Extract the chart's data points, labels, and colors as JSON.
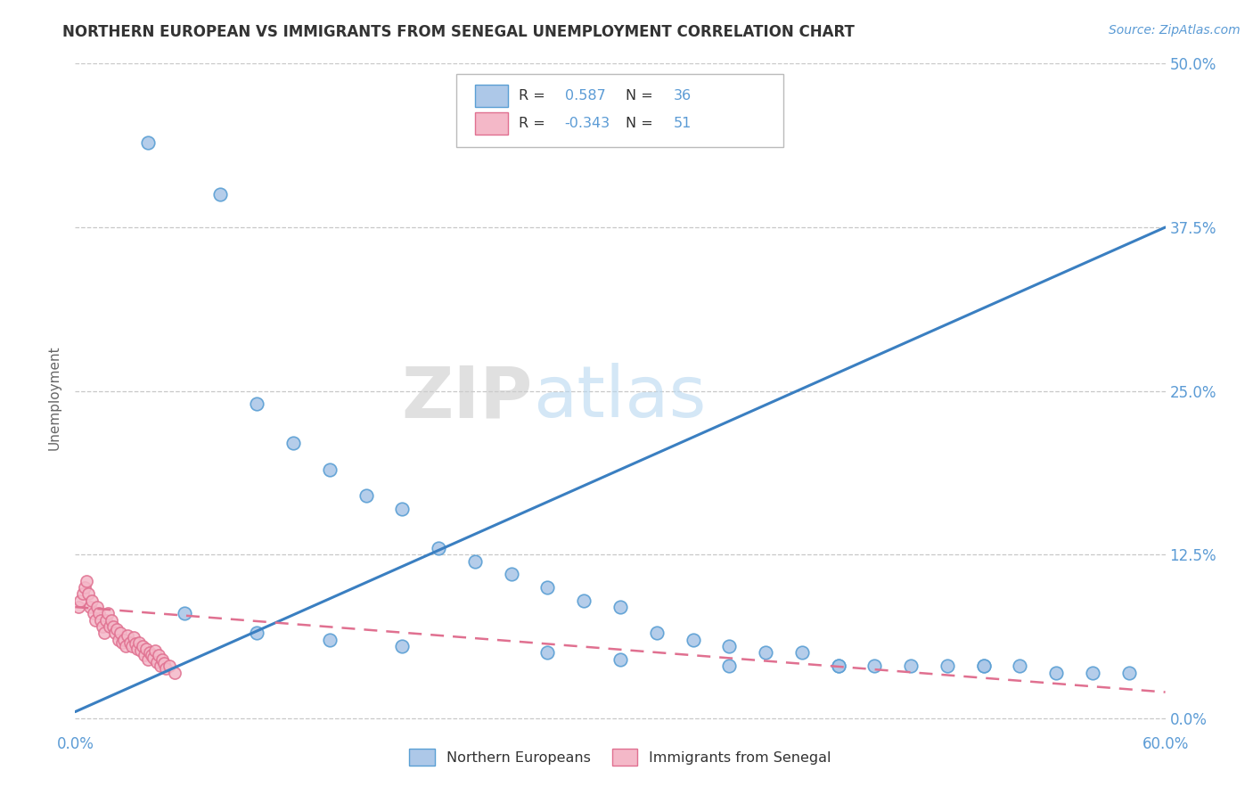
{
  "title": "NORTHERN EUROPEAN VS IMMIGRANTS FROM SENEGAL UNEMPLOYMENT CORRELATION CHART",
  "source": "Source: ZipAtlas.com",
  "ylabel": "Unemployment",
  "xlim": [
    0.0,
    0.6
  ],
  "ylim": [
    -0.01,
    0.5
  ],
  "ytick_labels": [
    "0.0%",
    "12.5%",
    "25.0%",
    "37.5%",
    "50.0%"
  ],
  "ytick_values": [
    0.0,
    0.125,
    0.25,
    0.375,
    0.5
  ],
  "blue_color": "#adc8e8",
  "blue_edge_color": "#5a9fd4",
  "pink_color": "#f4b8c8",
  "pink_edge_color": "#e07090",
  "blue_line_color": "#3a7fc1",
  "pink_line_color": "#e07090",
  "title_color": "#333333",
  "axis_label_color": "#5b9bd5",
  "grid_color": "#c8c8c8",
  "ne_x": [
    0.04,
    0.08,
    0.1,
    0.12,
    0.14,
    0.16,
    0.18,
    0.2,
    0.22,
    0.24,
    0.26,
    0.28,
    0.3,
    0.32,
    0.34,
    0.36,
    0.38,
    0.4,
    0.42,
    0.44,
    0.46,
    0.48,
    0.5,
    0.52,
    0.54,
    0.56,
    0.58,
    0.06,
    0.1,
    0.14,
    0.18,
    0.26,
    0.3,
    0.36,
    0.42,
    0.5
  ],
  "ne_y": [
    0.44,
    0.4,
    0.24,
    0.21,
    0.19,
    0.17,
    0.16,
    0.13,
    0.12,
    0.11,
    0.1,
    0.09,
    0.085,
    0.065,
    0.06,
    0.055,
    0.05,
    0.05,
    0.04,
    0.04,
    0.04,
    0.04,
    0.04,
    0.04,
    0.035,
    0.035,
    0.035,
    0.08,
    0.065,
    0.06,
    0.055,
    0.05,
    0.045,
    0.04,
    0.04,
    0.04
  ],
  "sn_x": [
    0.002,
    0.003,
    0.004,
    0.005,
    0.006,
    0.007,
    0.008,
    0.009,
    0.01,
    0.011,
    0.012,
    0.013,
    0.014,
    0.015,
    0.016,
    0.017,
    0.018,
    0.019,
    0.02,
    0.021,
    0.022,
    0.023,
    0.024,
    0.025,
    0.026,
    0.027,
    0.028,
    0.029,
    0.03,
    0.031,
    0.032,
    0.033,
    0.034,
    0.035,
    0.036,
    0.037,
    0.038,
    0.039,
    0.04,
    0.041,
    0.042,
    0.043,
    0.044,
    0.045,
    0.046,
    0.047,
    0.048,
    0.049,
    0.05,
    0.052,
    0.055
  ],
  "sn_y": [
    0.085,
    0.09,
    0.095,
    0.1,
    0.105,
    0.095,
    0.085,
    0.09,
    0.08,
    0.075,
    0.085,
    0.08,
    0.075,
    0.07,
    0.065,
    0.075,
    0.08,
    0.07,
    0.075,
    0.07,
    0.065,
    0.068,
    0.06,
    0.065,
    0.058,
    0.06,
    0.055,
    0.063,
    0.058,
    0.055,
    0.062,
    0.057,
    0.053,
    0.058,
    0.052,
    0.055,
    0.048,
    0.053,
    0.045,
    0.05,
    0.048,
    0.046,
    0.052,
    0.043,
    0.048,
    0.04,
    0.045,
    0.042,
    0.038,
    0.04,
    0.035
  ],
  "blue_trend_x": [
    0.0,
    0.6
  ],
  "blue_trend_y": [
    0.005,
    0.375
  ],
  "pink_trend_x": [
    0.0,
    0.6
  ],
  "pink_trend_y": [
    0.085,
    0.02
  ]
}
